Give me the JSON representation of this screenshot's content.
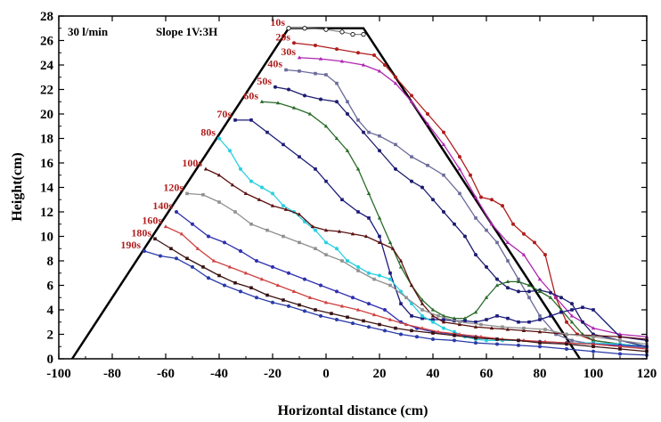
{
  "chart_data": {
    "type": "line",
    "title": "",
    "xlabel": "Horizontal distance (cm)",
    "ylabel": "Height(cm)",
    "xlim": [
      -100,
      120
    ],
    "ylim": [
      0,
      28
    ],
    "xticks": [
      -100,
      -80,
      -60,
      -40,
      -20,
      0,
      20,
      40,
      60,
      80,
      100,
      120
    ],
    "yticks": [
      0,
      2,
      4,
      6,
      8,
      10,
      12,
      14,
      16,
      18,
      20,
      22,
      24,
      26,
      28
    ],
    "annotations": [
      "30 l/min",
      "Slope 1V:3H"
    ],
    "grid": false,
    "legend": "none",
    "initial_profile": {
      "x": [
        -95,
        -14,
        14,
        95
      ],
      "y": [
        0,
        27,
        27,
        0
      ],
      "color": "#000000"
    },
    "series": [
      {
        "name": "10s",
        "color": "#888888",
        "x": [
          -14,
          -8,
          0,
          6,
          10,
          14
        ],
        "y": [
          27,
          27,
          26.9,
          26.7,
          26.5,
          26.5
        ]
      },
      {
        "name": "20s",
        "color": "#b01e1e",
        "x": [
          -12,
          -4,
          4,
          12,
          18,
          22,
          26,
          32,
          38,
          44,
          50,
          54,
          58,
          62,
          66,
          70,
          74,
          78,
          82,
          86,
          90,
          94,
          100,
          110,
          120
        ],
        "y": [
          25.8,
          25.6,
          25.3,
          25.0,
          24.8,
          24.0,
          23.0,
          21.5,
          20.0,
          18.5,
          16.5,
          15.0,
          13.2,
          13.0,
          12.5,
          11.0,
          10.2,
          9.5,
          8.5,
          5.0,
          3.0,
          2.0,
          1.5,
          1.2,
          1.0
        ]
      },
      {
        "name": "30s",
        "color": "#b026b0",
        "x": [
          -10,
          -2,
          6,
          14,
          20,
          26,
          32,
          38,
          44,
          50,
          56,
          62,
          68,
          74,
          80,
          86,
          92,
          100,
          110,
          120
        ],
        "y": [
          24.6,
          24.5,
          24.3,
          24.0,
          23.5,
          22.5,
          21.0,
          19.2,
          17.5,
          15.5,
          13.2,
          11.0,
          9.5,
          8.5,
          6.5,
          5.0,
          3.5,
          2.5,
          2.0,
          1.8
        ]
      },
      {
        "name": "40s",
        "color": "#6a6a9a",
        "x": [
          -15,
          -10,
          -4,
          0,
          4,
          8,
          12,
          16,
          20,
          26,
          32,
          38,
          44,
          50,
          56,
          60,
          64,
          68,
          72,
          76,
          80,
          86,
          92,
          100,
          110,
          120
        ],
        "y": [
          23.6,
          23.5,
          23.3,
          23.2,
          22.5,
          21.0,
          19.5,
          18.5,
          18.2,
          17.5,
          16.5,
          15.8,
          15.0,
          13.5,
          11.5,
          10.5,
          9.5,
          8.0,
          6.5,
          5.0,
          3.5,
          2.0,
          1.5,
          1.2,
          1.0,
          0.9
        ]
      },
      {
        "name": "50s",
        "color": "#1c1c6e",
        "x": [
          -19,
          -14,
          -8,
          -2,
          4,
          8,
          14,
          20,
          26,
          32,
          36,
          40,
          44,
          48,
          52,
          56,
          60,
          64,
          68,
          72,
          76,
          80,
          84,
          88,
          92,
          96,
          100,
          110,
          120
        ],
        "y": [
          22.2,
          22.0,
          21.5,
          21.2,
          21.0,
          20.0,
          18.5,
          17.0,
          15.5,
          14.5,
          14.0,
          13.0,
          12.0,
          11.0,
          10.0,
          8.5,
          7.5,
          6.5,
          5.8,
          5.5,
          5.5,
          5.6,
          5.4,
          5.0,
          4.5,
          3.0,
          2.0,
          1.5,
          1.0
        ]
      },
      {
        "name": "60s",
        "color": "#2a6b2a",
        "x": [
          -24,
          -18,
          -12,
          -6,
          0,
          4,
          8,
          12,
          16,
          20,
          24,
          28,
          32,
          36,
          40,
          44,
          48,
          52,
          56,
          60,
          64,
          68,
          72,
          76,
          80,
          84,
          88,
          92,
          96,
          100,
          110,
          120
        ],
        "y": [
          21.0,
          20.9,
          20.5,
          20.0,
          19.0,
          18.0,
          17.0,
          15.5,
          13.5,
          11.5,
          9.5,
          7.5,
          6.0,
          4.8,
          4.0,
          3.5,
          3.3,
          3.3,
          3.8,
          5.0,
          6.0,
          6.3,
          6.3,
          6.0,
          5.5,
          5.0,
          4.0,
          3.0,
          2.0,
          1.5,
          1.2,
          1.0
        ]
      },
      {
        "name": "70s",
        "color": "#1a1a7a",
        "x": [
          -34,
          -28,
          -22,
          -16,
          -10,
          -4,
          0,
          6,
          12,
          16,
          20,
          24,
          28,
          32,
          36,
          40,
          44,
          48,
          52,
          56,
          60,
          64,
          68,
          72,
          76,
          80,
          84,
          88,
          92,
          96,
          100,
          110,
          120
        ],
        "y": [
          19.5,
          19.5,
          18.5,
          17.5,
          16.5,
          15.5,
          14.5,
          13.0,
          12.0,
          11.5,
          10.0,
          7.0,
          4.5,
          3.5,
          3.3,
          3.2,
          3.2,
          3.1,
          3.1,
          3.0,
          3.2,
          3.5,
          3.3,
          3.0,
          3.0,
          3.2,
          3.5,
          3.8,
          4.0,
          4.2,
          4.0,
          1.8,
          1.5
        ]
      },
      {
        "name": "80s",
        "color": "#2ad0e0",
        "x": [
          -40,
          -36,
          -32,
          -28,
          -24,
          -20,
          -16,
          -12,
          -8,
          -4,
          0,
          4,
          8,
          12,
          16,
          20,
          24,
          28,
          32,
          36,
          40,
          44,
          48,
          52,
          56,
          60,
          66,
          72,
          80,
          90,
          100,
          110,
          120
        ],
        "y": [
          18.0,
          17.0,
          15.5,
          14.5,
          14.0,
          13.5,
          12.5,
          12.0,
          11.2,
          10.5,
          9.5,
          9.0,
          8.0,
          7.5,
          7.0,
          6.8,
          6.5,
          5.5,
          4.5,
          3.5,
          3.0,
          2.5,
          2.2,
          1.8,
          1.6,
          1.5,
          1.5,
          1.5,
          1.4,
          1.3,
          1.3,
          1.2,
          1.0
        ]
      },
      {
        "name": "100s",
        "color": "#5a1010",
        "x": [
          -45,
          -40,
          -35,
          -30,
          -25,
          -20,
          -15,
          -10,
          -5,
          0,
          5,
          10,
          15,
          20,
          25,
          28,
          32,
          36,
          40,
          44,
          50,
          56,
          62,
          68,
          74,
          80,
          90,
          100,
          110,
          120
        ],
        "y": [
          15.5,
          15.0,
          14.2,
          13.5,
          13.0,
          12.5,
          12.2,
          11.8,
          10.8,
          10.5,
          10.4,
          10.2,
          10.0,
          9.5,
          9.0,
          8.0,
          6.0,
          4.5,
          3.5,
          3.0,
          2.8,
          2.6,
          2.5,
          2.4,
          2.3,
          2.2,
          2.0,
          1.9,
          1.8,
          1.6
        ]
      },
      {
        "name": "120s",
        "color": "#909090",
        "x": [
          -52,
          -46,
          -40,
          -34,
          -28,
          -22,
          -16,
          -10,
          -4,
          0,
          6,
          12,
          18,
          24,
          30,
          36,
          42,
          50,
          58,
          66,
          74,
          82,
          90,
          100,
          110,
          120
        ],
        "y": [
          13.5,
          13.4,
          12.8,
          12.0,
          11.0,
          10.5,
          10.0,
          9.5,
          9.0,
          8.5,
          8.0,
          7.2,
          6.5,
          6.0,
          5.0,
          4.0,
          3.5,
          3.0,
          2.8,
          2.6,
          2.5,
          2.4,
          2.0,
          1.8,
          1.5,
          1.2
        ]
      },
      {
        "name": "140s",
        "color": "#2f2fb0",
        "x": [
          -56,
          -50,
          -44,
          -38,
          -32,
          -26,
          -20,
          -14,
          -8,
          -2,
          4,
          10,
          16,
          22,
          28,
          34,
          40,
          48,
          56,
          64,
          72,
          80,
          90,
          100,
          110,
          120
        ],
        "y": [
          12.0,
          11.0,
          10.0,
          9.5,
          8.8,
          8.0,
          7.5,
          7.0,
          6.5,
          6.0,
          5.5,
          5.0,
          4.5,
          4.0,
          3.0,
          2.5,
          2.2,
          2.0,
          1.8,
          1.6,
          1.5,
          1.4,
          1.3,
          1.2,
          1.1,
          1.0
        ]
      },
      {
        "name": "160s",
        "color": "#d04040",
        "x": [
          -60,
          -54,
          -48,
          -42,
          -36,
          -30,
          -24,
          -18,
          -12,
          -6,
          0,
          6,
          12,
          18,
          24,
          30,
          36,
          42,
          50,
          58,
          66,
          74,
          82,
          90,
          100,
          110,
          120
        ],
        "y": [
          10.8,
          10.2,
          9.0,
          8.0,
          7.5,
          7.0,
          6.5,
          6.0,
          5.5,
          5.0,
          4.6,
          4.3,
          4.0,
          3.6,
          3.2,
          2.8,
          2.5,
          2.2,
          2.0,
          1.8,
          1.6,
          1.5,
          1.4,
          1.3,
          1.2,
          1.0,
          0.8
        ]
      },
      {
        "name": "180s",
        "color": "#3a1212",
        "x": [
          -64,
          -58,
          -52,
          -46,
          -40,
          -34,
          -28,
          -22,
          -16,
          -10,
          -4,
          2,
          8,
          14,
          20,
          26,
          32,
          40,
          48,
          56,
          64,
          72,
          80,
          90,
          100,
          110,
          120
        ],
        "y": [
          9.8,
          9.0,
          8.2,
          7.5,
          6.8,
          6.2,
          5.8,
          5.2,
          4.8,
          4.4,
          4.0,
          3.7,
          3.4,
          3.1,
          2.8,
          2.5,
          2.3,
          2.1,
          1.9,
          1.7,
          1.6,
          1.5,
          1.3,
          1.2,
          1.0,
          0.8,
          0.6
        ]
      },
      {
        "name": "190s",
        "color": "#2a3aa8",
        "x": [
          -68,
          -62,
          -56,
          -50,
          -44,
          -38,
          -32,
          -26,
          -20,
          -14,
          -8,
          -2,
          4,
          10,
          16,
          22,
          28,
          34,
          40,
          48,
          56,
          64,
          72,
          80,
          90,
          100,
          110,
          120
        ],
        "y": [
          8.8,
          8.4,
          8.2,
          7.5,
          6.6,
          6.0,
          5.5,
          5.0,
          4.6,
          4.3,
          3.9,
          3.5,
          3.2,
          2.9,
          2.6,
          2.3,
          2.0,
          1.8,
          1.6,
          1.5,
          1.3,
          1.2,
          1.1,
          1.0,
          0.8,
          0.6,
          0.4,
          0.3
        ]
      }
    ],
    "series_label_color": "#b01e1e"
  }
}
